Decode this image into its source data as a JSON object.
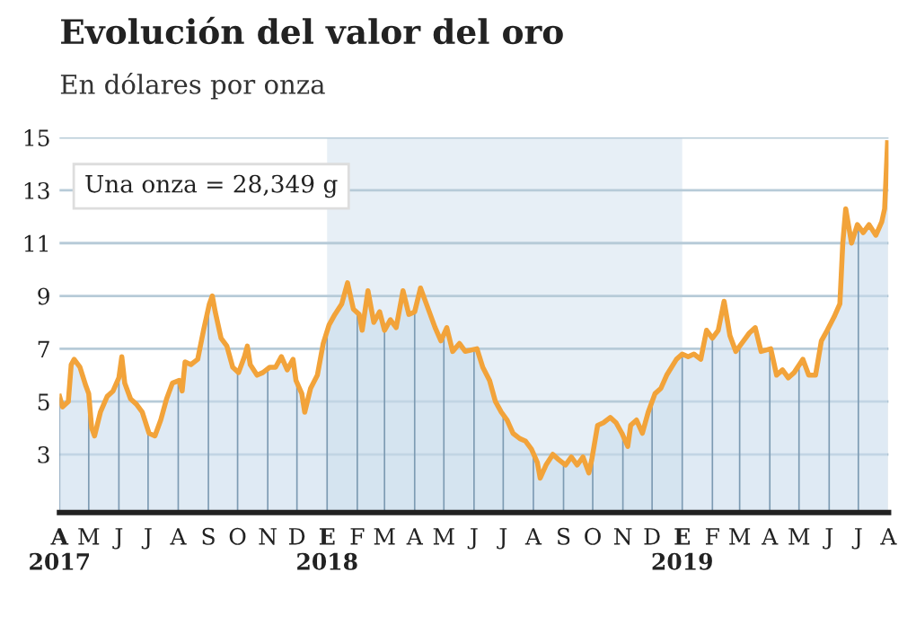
{
  "chart_data": {
    "type": "area",
    "title": "Evolución del valor del oro",
    "subtitle": "En dólares por onza",
    "annotations": [
      "Una onza = 28,349 g"
    ],
    "x": [
      "2017-04-01",
      "2017-04-04",
      "2017-04-10",
      "2017-04-13",
      "2017-04-16",
      "2017-04-22",
      "2017-04-28",
      "2017-05-01",
      "2017-05-04",
      "2017-05-07",
      "2017-05-13",
      "2017-05-20",
      "2017-05-26",
      "2017-06-01",
      "2017-06-04",
      "2017-06-07",
      "2017-06-13",
      "2017-06-19",
      "2017-06-25",
      "2017-07-02",
      "2017-07-08",
      "2017-07-14",
      "2017-07-20",
      "2017-07-26",
      "2017-08-02",
      "2017-08-05",
      "2017-08-08",
      "2017-08-14",
      "2017-08-21",
      "2017-08-27",
      "2017-09-02",
      "2017-09-05",
      "2017-09-08",
      "2017-09-14",
      "2017-09-20",
      "2017-09-26",
      "2017-10-02",
      "2017-10-08",
      "2017-10-11",
      "2017-10-14",
      "2017-10-21",
      "2017-10-27",
      "2017-11-03",
      "2017-11-09",
      "2017-11-15",
      "2017-11-21",
      "2017-11-27",
      "2017-11-30",
      "2017-12-06",
      "2017-12-09",
      "2017-12-15",
      "2017-12-22",
      "2017-12-28",
      "2018-01-03",
      "2018-01-09",
      "2018-01-16",
      "2018-01-22",
      "2018-01-28",
      "2018-02-03",
      "2018-02-06",
      "2018-02-12",
      "2018-02-18",
      "2018-02-24",
      "2018-03-01",
      "2018-03-07",
      "2018-03-13",
      "2018-03-20",
      "2018-03-26",
      "2018-04-01",
      "2018-04-07",
      "2018-04-13",
      "2018-04-22",
      "2018-04-28",
      "2018-05-04",
      "2018-05-10",
      "2018-05-17",
      "2018-05-23",
      "2018-06-04",
      "2018-06-10",
      "2018-06-17",
      "2018-06-23",
      "2018-06-29",
      "2018-07-05",
      "2018-07-11",
      "2018-07-18",
      "2018-07-24",
      "2018-07-30",
      "2018-08-05",
      "2018-08-08",
      "2018-08-14",
      "2018-08-21",
      "2018-08-27",
      "2018-09-03",
      "2018-09-09",
      "2018-09-15",
      "2018-09-21",
      "2018-09-27",
      "2018-09-30",
      "2018-10-06",
      "2018-10-12",
      "2018-10-19",
      "2018-10-25",
      "2018-10-31",
      "2018-11-06",
      "2018-11-09",
      "2018-11-15",
      "2018-11-21",
      "2018-11-27",
      "2018-12-04",
      "2018-12-10",
      "2018-12-16",
      "2018-12-26",
      "2019-01-01",
      "2019-01-07",
      "2019-01-13",
      "2019-01-20",
      "2019-01-26",
      "2019-02-01",
      "2019-02-07",
      "2019-02-13",
      "2019-02-19",
      "2019-02-25",
      "2019-03-05",
      "2019-03-11",
      "2019-03-17",
      "2019-03-23",
      "2019-04-02",
      "2019-04-08",
      "2019-04-14",
      "2019-04-20",
      "2019-04-26",
      "2019-05-05",
      "2019-05-11",
      "2019-05-18",
      "2019-05-24",
      "2019-05-30",
      "2019-06-06",
      "2019-06-12",
      "2019-06-15",
      "2019-06-18",
      "2019-06-24",
      "2019-06-30",
      "2019-07-06",
      "2019-07-12",
      "2019-07-19",
      "2019-07-25",
      "2019-07-28",
      "2019-07-31"
    ],
    "series": [
      {
        "color": "#f2a33a",
        "values": [
          5.2,
          4.8,
          5.0,
          6.4,
          6.6,
          6.3,
          5.6,
          5.3,
          4.0,
          3.7,
          4.6,
          5.2,
          5.4,
          5.9,
          6.7,
          5.7,
          5.1,
          4.9,
          4.6,
          3.8,
          3.7,
          4.3,
          5.1,
          5.7,
          5.8,
          5.4,
          6.5,
          6.4,
          6.6,
          7.7,
          8.7,
          9.0,
          8.4,
          7.4,
          7.1,
          6.3,
          6.1,
          6.7,
          7.1,
          6.4,
          6.0,
          6.1,
          6.3,
          6.3,
          6.7,
          6.2,
          6.6,
          5.8,
          5.3,
          4.6,
          5.5,
          6.0,
          7.2,
          7.9,
          8.3,
          8.7,
          9.5,
          8.5,
          8.3,
          7.7,
          9.2,
          8.0,
          8.4,
          7.7,
          8.1,
          7.8,
          9.2,
          8.3,
          8.4,
          9.3,
          8.7,
          7.8,
          7.3,
          7.8,
          6.9,
          7.2,
          6.9,
          7.0,
          6.3,
          5.8,
          5.0,
          4.6,
          4.3,
          3.8,
          3.6,
          3.5,
          3.2,
          2.7,
          2.1,
          2.6,
          3.0,
          2.8,
          2.6,
          2.9,
          2.6,
          2.9,
          2.3,
          2.8,
          4.1,
          4.2,
          4.4,
          4.2,
          3.8,
          3.3,
          4.1,
          4.3,
          3.8,
          4.6,
          5.3,
          5.5,
          6.0,
          6.6,
          6.8,
          6.7,
          6.8,
          6.6,
          7.7,
          7.4,
          7.7,
          8.8,
          7.5,
          6.9,
          7.3,
          7.6,
          7.8,
          6.9,
          7.0,
          6.0,
          6.2,
          5.9,
          6.1,
          6.6,
          6.0,
          6.0,
          7.3,
          7.7,
          8.2,
          8.7,
          11.0,
          12.3,
          11.0,
          11.7,
          11.4,
          11.7,
          11.3,
          11.8,
          12.3,
          14.8
        ]
      }
    ],
    "bands": [
      {
        "axis": "x",
        "from": "2018-01-01",
        "to": "2019-01-01",
        "color": "#b9d2e5"
      }
    ],
    "xlim": [
      "2017-04-01",
      "2019-08-01"
    ],
    "xticks": [
      {
        "value": "2017-04-01",
        "label": "A\n2017"
      },
      {
        "value": "2017-05-01",
        "label": "M"
      },
      {
        "value": "2017-06-01",
        "label": "J"
      },
      {
        "value": "2017-07-01",
        "label": "J"
      },
      {
        "value": "2017-08-01",
        "label": "A"
      },
      {
        "value": "2017-09-01",
        "label": "S"
      },
      {
        "value": "2017-10-01",
        "label": "O"
      },
      {
        "value": "2017-11-01",
        "label": "N"
      },
      {
        "value": "2017-12-01",
        "label": "D"
      },
      {
        "value": "2018-01-01",
        "label": "E\n2018"
      },
      {
        "value": "2018-02-01",
        "label": "F"
      },
      {
        "value": "2018-03-01",
        "label": "M"
      },
      {
        "value": "2018-04-01",
        "label": "A"
      },
      {
        "value": "2018-05-01",
        "label": "M"
      },
      {
        "value": "2018-06-01",
        "label": "J"
      },
      {
        "value": "2018-07-01",
        "label": "J"
      },
      {
        "value": "2018-08-01",
        "label": "A"
      },
      {
        "value": "2018-09-01",
        "label": "S"
      },
      {
        "value": "2018-10-01",
        "label": "O"
      },
      {
        "value": "2018-11-01",
        "label": "N"
      },
      {
        "value": "2018-12-01",
        "label": "D"
      },
      {
        "value": "2019-01-01",
        "label": "E\n2019"
      },
      {
        "value": "2019-02-01",
        "label": "F"
      },
      {
        "value": "2019-03-01",
        "label": "M"
      },
      {
        "value": "2019-04-01",
        "label": "A"
      },
      {
        "value": "2019-05-01",
        "label": "M"
      },
      {
        "value": "2019-06-01",
        "label": "J"
      },
      {
        "value": "2019-07-01",
        "label": "J"
      },
      {
        "value": "2019-08-01",
        "label": "A"
      }
    ],
    "ylim": [
      0.8,
      15
    ],
    "yticks": [
      3,
      5,
      7,
      9,
      11,
      13,
      15
    ],
    "grid": true
  }
}
